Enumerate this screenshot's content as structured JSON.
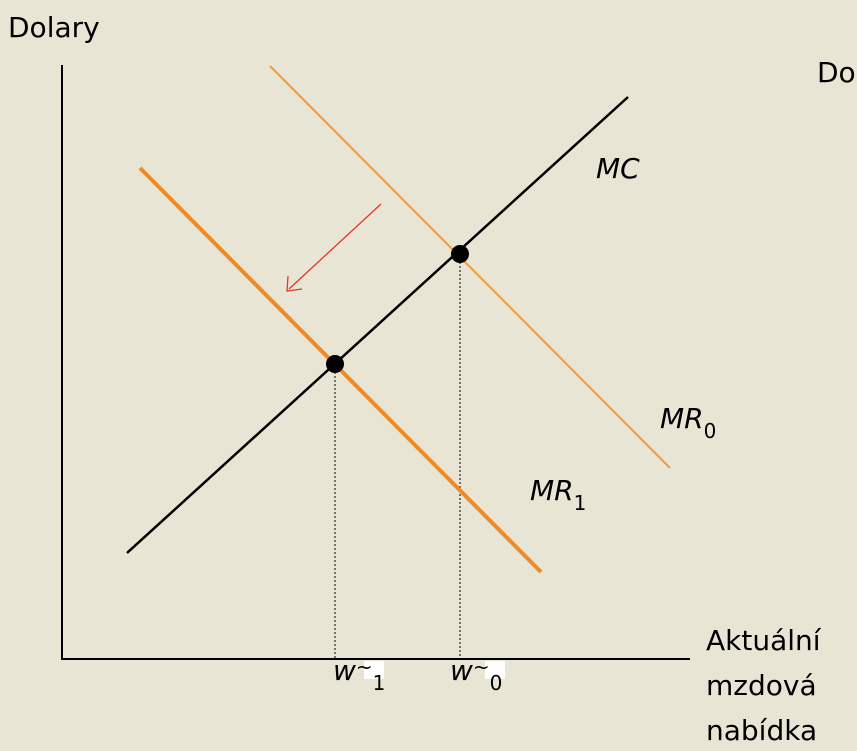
{
  "axis_labels": {
    "y": "Dolary",
    "x": [
      "Aktuální",
      "mzdová",
      "nabídka"
    ]
  },
  "cut_text": "Do",
  "curves": {
    "mc": "MC",
    "mr0": {
      "base": "MR",
      "sub": "0"
    },
    "mr1": {
      "base": "MR",
      "sub": "1"
    }
  },
  "x_points": [
    {
      "base": "w",
      "mark": "~",
      "sub": "1"
    },
    {
      "base": "w",
      "mark": "~",
      "sub": "0"
    }
  ]
}
